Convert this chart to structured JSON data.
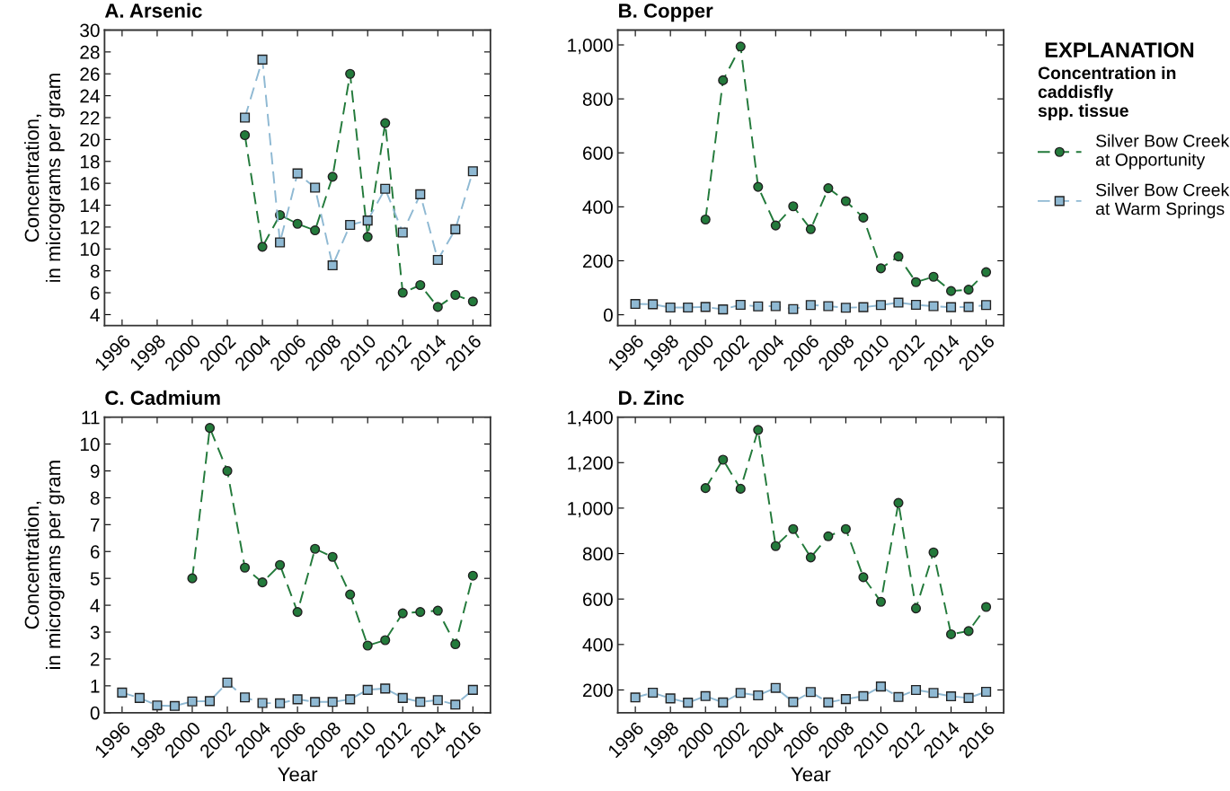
{
  "chart_data": [
    {
      "type": "line",
      "title": "A. Arsenic",
      "ylabel": "Concentration,\nin micrograms per gram",
      "xlim": [
        1995,
        2017
      ],
      "xticks": [
        1996,
        1998,
        2000,
        2002,
        2004,
        2006,
        2008,
        2010,
        2012,
        2014,
        2016
      ],
      "ylim": [
        3,
        30
      ],
      "yticks": [
        4,
        6,
        8,
        10,
        12,
        14,
        16,
        18,
        20,
        22,
        24,
        26,
        28,
        30
      ],
      "grid": false,
      "line_style": "dashed",
      "series": [
        {
          "color": "#237a3b",
          "marker": "circle",
          "x": [
            2003,
            2004,
            2005,
            2006,
            2007,
            2008,
            2009,
            2010,
            2011,
            2012,
            2013,
            2014,
            2015,
            2016
          ],
          "values": [
            20.4,
            10.2,
            13.1,
            12.3,
            11.7,
            16.6,
            26.0,
            11.1,
            21.5,
            6.0,
            6.7,
            4.7,
            5.8,
            5.2
          ]
        },
        {
          "color": "#8fb9d3",
          "marker": "square",
          "x": [
            2003,
            2004,
            2005,
            2006,
            2007,
            2008,
            2009,
            2010,
            2011,
            2012,
            2013,
            2014,
            2015,
            2016
          ],
          "values": [
            22.0,
            27.3,
            10.6,
            16.9,
            15.6,
            8.5,
            12.2,
            12.6,
            15.5,
            11.5,
            15.0,
            9.0,
            11.8,
            17.1
          ]
        }
      ]
    },
    {
      "type": "line",
      "title": "B. Copper",
      "xlim": [
        1995,
        2017
      ],
      "xticks": [
        1996,
        1998,
        2000,
        2002,
        2004,
        2006,
        2008,
        2010,
        2012,
        2014,
        2016
      ],
      "ylim": [
        -40,
        1055
      ],
      "yticks": [
        0,
        200,
        400,
        600,
        800,
        {
          "value": 1000,
          "label": "1,000"
        }
      ],
      "grid": false,
      "line_style": "dashed",
      "legend": "right",
      "legend_title": "Concentration in\ncaddisfly\nspp. tissue",
      "annotations": [
        "EXPLANATION"
      ],
      "series": [
        {
          "name": "Silver Bow Creek\nat Opportunity",
          "color": "#237a3b",
          "marker": "circle",
          "x": [
            2000,
            2001,
            2002,
            2003,
            2004,
            2005,
            2006,
            2007,
            2008,
            2009,
            2010,
            2011,
            2012,
            2013,
            2014,
            2015,
            2016
          ],
          "values": [
            353,
            869,
            994,
            474,
            331,
            402,
            317,
            469,
            421,
            360,
            172,
            216,
            121,
            141,
            88,
            93,
            158
          ]
        },
        {
          "name": "Silver Bow Creek\nat Warm Springs",
          "color": "#8fb9d3",
          "marker": "square",
          "x": [
            1996,
            1997,
            1998,
            1999,
            2000,
            2001,
            2002,
            2003,
            2004,
            2005,
            2006,
            2007,
            2008,
            2009,
            2010,
            2011,
            2012,
            2013,
            2014,
            2015,
            2016
          ],
          "values": [
            40,
            39,
            27,
            27,
            29,
            20,
            37,
            31,
            32,
            21,
            36,
            32,
            26,
            28,
            36,
            45,
            37,
            32,
            28,
            29,
            36
          ]
        }
      ]
    },
    {
      "type": "line",
      "title": "C. Cadmium",
      "ylabel": "Concentration,\nin micrograms per gram",
      "xlabel": "Year",
      "xlim": [
        1995,
        2017
      ],
      "xticks": [
        1996,
        1998,
        2000,
        2002,
        2004,
        2006,
        2008,
        2010,
        2012,
        2014,
        2016
      ],
      "ylim": [
        0,
        11
      ],
      "yticks": [
        0,
        1,
        2,
        3,
        4,
        5,
        6,
        7,
        8,
        9,
        10,
        11
      ],
      "grid": false,
      "line_style": "dashed",
      "series": [
        {
          "color": "#237a3b",
          "marker": "circle",
          "x": [
            2000,
            2001,
            2002,
            2003,
            2004,
            2005,
            2006,
            2007,
            2008,
            2009,
            2010,
            2011,
            2012,
            2013,
            2014,
            2015,
            2016
          ],
          "values": [
            5.0,
            10.6,
            9.0,
            5.4,
            4.85,
            5.5,
            3.75,
            6.1,
            5.8,
            4.4,
            2.5,
            2.7,
            3.7,
            3.75,
            3.8,
            2.55,
            5.1
          ]
        },
        {
          "color": "#8fb9d3",
          "marker": "square",
          "x": [
            1996,
            1997,
            1998,
            1999,
            2000,
            2001,
            2002,
            2003,
            2004,
            2005,
            2006,
            2007,
            2008,
            2009,
            2010,
            2011,
            2012,
            2013,
            2014,
            2015,
            2016
          ],
          "values": [
            0.75,
            0.55,
            0.27,
            0.25,
            0.42,
            0.43,
            1.12,
            0.57,
            0.36,
            0.35,
            0.5,
            0.4,
            0.4,
            0.5,
            0.85,
            0.9,
            0.55,
            0.4,
            0.47,
            0.3,
            0.85
          ]
        }
      ]
    },
    {
      "type": "line",
      "title": "D. Zinc",
      "xlabel": "Year",
      "xlim": [
        1995,
        2017
      ],
      "xticks": [
        1996,
        1998,
        2000,
        2002,
        2004,
        2006,
        2008,
        2010,
        2012,
        2014,
        2016
      ],
      "ylim": [
        100,
        1400
      ],
      "yticks": [
        200,
        400,
        600,
        800,
        {
          "value": 1000,
          "label": "1,000"
        },
        {
          "value": 1200,
          "label": "1,200"
        },
        {
          "value": 1400,
          "label": "1,400"
        }
      ],
      "grid": false,
      "line_style": "dashed",
      "series": [
        {
          "color": "#237a3b",
          "marker": "circle",
          "x": [
            2000,
            2001,
            2002,
            2003,
            2004,
            2005,
            2006,
            2007,
            2008,
            2009,
            2010,
            2011,
            2012,
            2013,
            2014,
            2015,
            2016
          ],
          "values": [
            1088,
            1213,
            1085,
            1344,
            833,
            908,
            783,
            876,
            908,
            696,
            588,
            1023,
            559,
            805,
            445,
            459,
            565
          ]
        },
        {
          "color": "#8fb9d3",
          "marker": "square",
          "x": [
            1996,
            1997,
            1998,
            1999,
            2000,
            2001,
            2002,
            2003,
            2004,
            2005,
            2006,
            2007,
            2008,
            2009,
            2010,
            2011,
            2012,
            2013,
            2014,
            2015,
            2016
          ],
          "values": [
            167,
            188,
            163,
            144,
            173,
            145,
            187,
            176,
            209,
            147,
            191,
            145,
            160,
            173,
            215,
            169,
            200,
            187,
            172,
            165,
            192
          ]
        }
      ]
    }
  ]
}
